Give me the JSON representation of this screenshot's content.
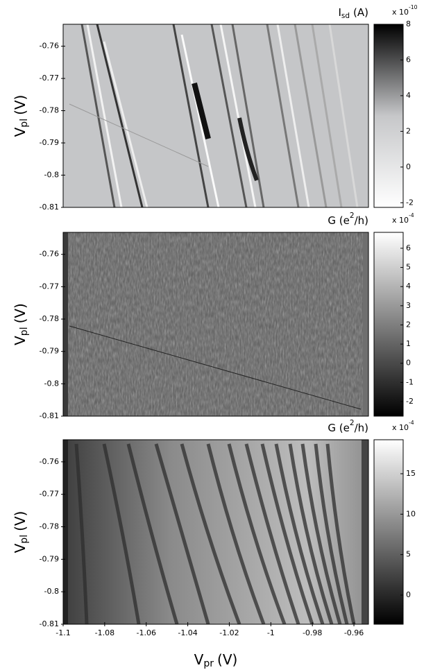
{
  "chart_data": [
    {
      "type": "heatmap",
      "ylabel_parts": [
        {
          "text": "V"
        },
        {
          "text": "pl",
          "shift": "sub"
        },
        {
          "text": "(V)"
        }
      ],
      "ylim": [
        -0.81,
        -0.7532
      ],
      "yticks": [
        -0.81,
        -0.8,
        -0.79,
        -0.78,
        -0.77,
        -0.76
      ],
      "colorbar": {
        "label_parts": [
          {
            "text": "I"
          },
          {
            "text": "sd",
            "shift": "sub"
          },
          {
            "text": "(A)"
          }
        ],
        "scale_parts": [
          {
            "text": "x 10"
          },
          {
            "text": "-10",
            "shift": "sup"
          }
        ],
        "lim": [
          -2.26,
          8
        ],
        "ticks": [
          -2,
          0,
          2,
          4,
          6,
          8
        ],
        "colors": [
          "#ffffff",
          "#c6c7c9",
          "#000000"
        ]
      }
    },
    {
      "type": "heatmap",
      "ylabel_parts": [
        {
          "text": "V"
        },
        {
          "text": "pl",
          "shift": "sub"
        },
        {
          "text": "(V)"
        }
      ],
      "ylim": [
        -0.81,
        -0.7532
      ],
      "yticks": [
        -0.81,
        -0.8,
        -0.79,
        -0.78,
        -0.77,
        -0.76
      ],
      "colorbar": {
        "label_parts": [
          {
            "text": "G (e"
          },
          {
            "text": "2",
            "shift": "sup"
          },
          {
            "text": "/h)"
          }
        ],
        "scale_parts": [
          {
            "text": "x 10"
          },
          {
            "text": "-4",
            "shift": "sup"
          }
        ],
        "lim": [
          -2.76,
          6.83
        ],
        "ticks": [
          -2,
          -1,
          0,
          1,
          2,
          3,
          4,
          5,
          6
        ],
        "colors": [
          "#000000",
          "#ffffff"
        ]
      }
    },
    {
      "type": "heatmap",
      "ylabel_parts": [
        {
          "text": "V"
        },
        {
          "text": "pl",
          "shift": "sub"
        },
        {
          "text": "(V)"
        }
      ],
      "xlabel_parts": [
        {
          "text": "V"
        },
        {
          "text": "pr",
          "shift": "sub"
        },
        {
          "text": "(V)"
        }
      ],
      "xlim": [
        -1.1,
        -0.953
      ],
      "xticks": [
        -1.1,
        -1.08,
        -1.06,
        -1.04,
        -1.02,
        -1,
        -0.98,
        -0.96
      ],
      "ylim": [
        -0.81,
        -0.7532
      ],
      "yticks": [
        -0.81,
        -0.8,
        -0.79,
        -0.78,
        -0.77,
        -0.76
      ],
      "colorbar": {
        "label_parts": [
          {
            "text": "G (e"
          },
          {
            "text": "2",
            "shift": "sup"
          },
          {
            "text": "/h)"
          }
        ],
        "scale_parts": [
          {
            "text": "x 10"
          },
          {
            "text": "-4",
            "shift": "sup"
          }
        ],
        "lim": [
          -3.6,
          19.2
        ],
        "ticks": [
          0,
          5,
          10,
          15
        ],
        "colors": [
          "#000000",
          "#ffffff"
        ]
      }
    }
  ]
}
